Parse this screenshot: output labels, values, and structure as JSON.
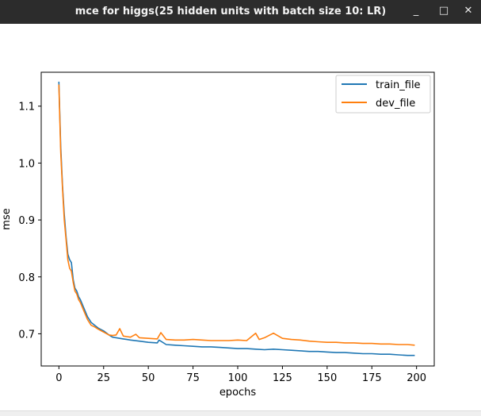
{
  "window": {
    "title": "mce for higgs(25 hidden units with batch size 10: LR)",
    "minimize_glyph": "_",
    "maximize_glyph": "□",
    "close_glyph": "✕"
  },
  "chart_data": {
    "type": "line",
    "title": "",
    "xlabel": "epochs",
    "ylabel": "mse",
    "xlim": [
      -9.9,
      209.9
    ],
    "ylim": [
      0.6434,
      1.1596
    ],
    "xticks": [
      0,
      25,
      50,
      75,
      100,
      125,
      150,
      175,
      200
    ],
    "yticks": [
      0.7,
      0.8,
      0.9,
      1.0,
      1.1
    ],
    "ytick_labels": [
      "0.7",
      "0.8",
      "0.9",
      "1.0",
      "1.1"
    ],
    "legend": "top-right",
    "grid": false,
    "series": [
      {
        "name": "train_file",
        "color": "#1f77b4",
        "x": [
          0,
          1,
          2,
          3,
          4,
          5,
          6,
          7,
          8,
          9,
          10,
          11,
          12,
          14,
          16,
          18,
          20,
          22,
          25,
          28,
          30,
          32,
          34,
          36,
          38,
          40,
          45,
          50,
          55,
          56,
          60,
          65,
          70,
          75,
          80,
          85,
          90,
          95,
          100,
          105,
          110,
          115,
          120,
          125,
          130,
          135,
          140,
          145,
          150,
          155,
          160,
          165,
          170,
          175,
          180,
          185,
          190,
          195,
          199
        ],
        "y": [
          1.143,
          1.03,
          0.96,
          0.91,
          0.87,
          0.84,
          0.83,
          0.825,
          0.795,
          0.78,
          0.775,
          0.765,
          0.76,
          0.745,
          0.73,
          0.72,
          0.715,
          0.71,
          0.705,
          0.698,
          0.694,
          0.693,
          0.692,
          0.691,
          0.69,
          0.689,
          0.687,
          0.685,
          0.684,
          0.689,
          0.681,
          0.68,
          0.679,
          0.678,
          0.677,
          0.677,
          0.676,
          0.675,
          0.674,
          0.674,
          0.673,
          0.672,
          0.673,
          0.672,
          0.671,
          0.67,
          0.669,
          0.669,
          0.668,
          0.667,
          0.667,
          0.666,
          0.665,
          0.665,
          0.664,
          0.664,
          0.663,
          0.662,
          0.662
        ]
      },
      {
        "name": "dev_file",
        "color": "#ff7f0e",
        "x": [
          0,
          1,
          2,
          3,
          4,
          5,
          6,
          7,
          8,
          9,
          10,
          11,
          12,
          14,
          16,
          18,
          20,
          22,
          25,
          28,
          30,
          32,
          34,
          36,
          38,
          40,
          43,
          45,
          50,
          55,
          57,
          60,
          65,
          70,
          75,
          80,
          85,
          90,
          95,
          100,
          105,
          110,
          112,
          115,
          118,
          120,
          125,
          130,
          135,
          140,
          145,
          150,
          155,
          160,
          165,
          170,
          175,
          180,
          185,
          190,
          195,
          199
        ],
        "y": [
          1.138,
          1.02,
          0.955,
          0.9,
          0.865,
          0.83,
          0.815,
          0.81,
          0.79,
          0.775,
          0.77,
          0.76,
          0.755,
          0.74,
          0.725,
          0.715,
          0.712,
          0.708,
          0.703,
          0.698,
          0.697,
          0.698,
          0.709,
          0.696,
          0.695,
          0.694,
          0.699,
          0.693,
          0.692,
          0.691,
          0.702,
          0.69,
          0.689,
          0.689,
          0.69,
          0.689,
          0.688,
          0.688,
          0.688,
          0.689,
          0.688,
          0.701,
          0.69,
          0.693,
          0.698,
          0.701,
          0.692,
          0.69,
          0.689,
          0.687,
          0.686,
          0.685,
          0.685,
          0.684,
          0.684,
          0.683,
          0.683,
          0.682,
          0.682,
          0.681,
          0.681,
          0.68
        ]
      }
    ]
  }
}
